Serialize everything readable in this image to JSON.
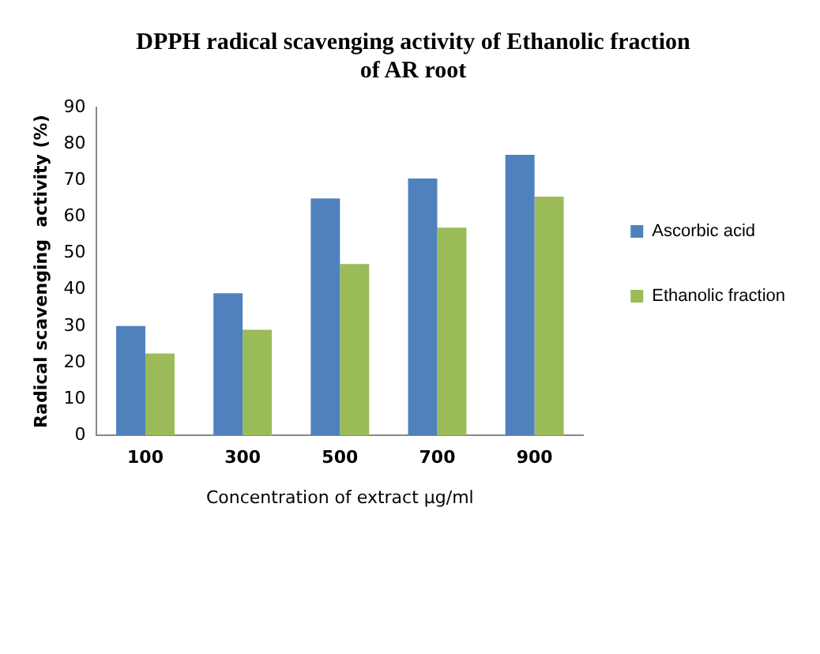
{
  "chart_data": {
    "type": "bar",
    "title": "DPPH radical scavenging activity of Ethanolic fraction of AR root",
    "xlabel": "Concentration of extract µg/ml",
    "ylabel": "Radical scavenging  activity (%)",
    "categories": [
      "100",
      "300",
      "500",
      "700",
      "900"
    ],
    "series": [
      {
        "name": "Ascorbic acid",
        "color": "#4f81bd",
        "values": [
          30,
          39,
          65,
          70.5,
          77
        ]
      },
      {
        "name": "Ethanolic fraction",
        "color": "#9bbb59",
        "values": [
          22.5,
          29,
          47,
          57,
          65.5
        ]
      }
    ],
    "ylim": [
      0,
      90
    ],
    "yticks": [
      0,
      10,
      20,
      30,
      40,
      50,
      60,
      70,
      80,
      90
    ],
    "grid": false,
    "legend": "right"
  }
}
